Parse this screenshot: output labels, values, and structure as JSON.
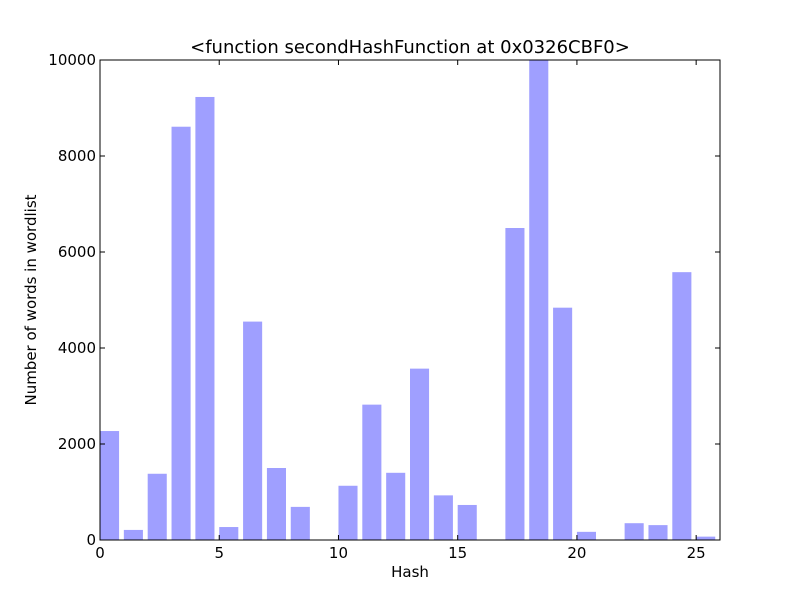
{
  "chart_data": {
    "type": "bar",
    "title": "<function secondHashFunction at 0x0326CBF0>",
    "xlabel": "Hash",
    "ylabel": "Number of words in wordlist",
    "xlim": [
      0,
      26
    ],
    "ylim": [
      0,
      10000
    ],
    "x_ticks": [
      0,
      5,
      10,
      15,
      20,
      25
    ],
    "y_ticks": [
      0,
      2000,
      4000,
      6000,
      8000,
      10000
    ],
    "bar_color": "#9f9fff",
    "bar_width": 0.8,
    "x": [
      0,
      1,
      2,
      3,
      4,
      5,
      6,
      7,
      8,
      9,
      10,
      11,
      12,
      13,
      14,
      15,
      16,
      17,
      18,
      19,
      20,
      21,
      22,
      23,
      24,
      25
    ],
    "values": [
      2270,
      210,
      1380,
      8610,
      9230,
      270,
      4550,
      1500,
      690,
      0,
      1130,
      2820,
      1400,
      3570,
      930,
      730,
      0,
      6500,
      10300,
      4840,
      170,
      0,
      350,
      310,
      5580,
      70
    ],
    "grid": false
  }
}
